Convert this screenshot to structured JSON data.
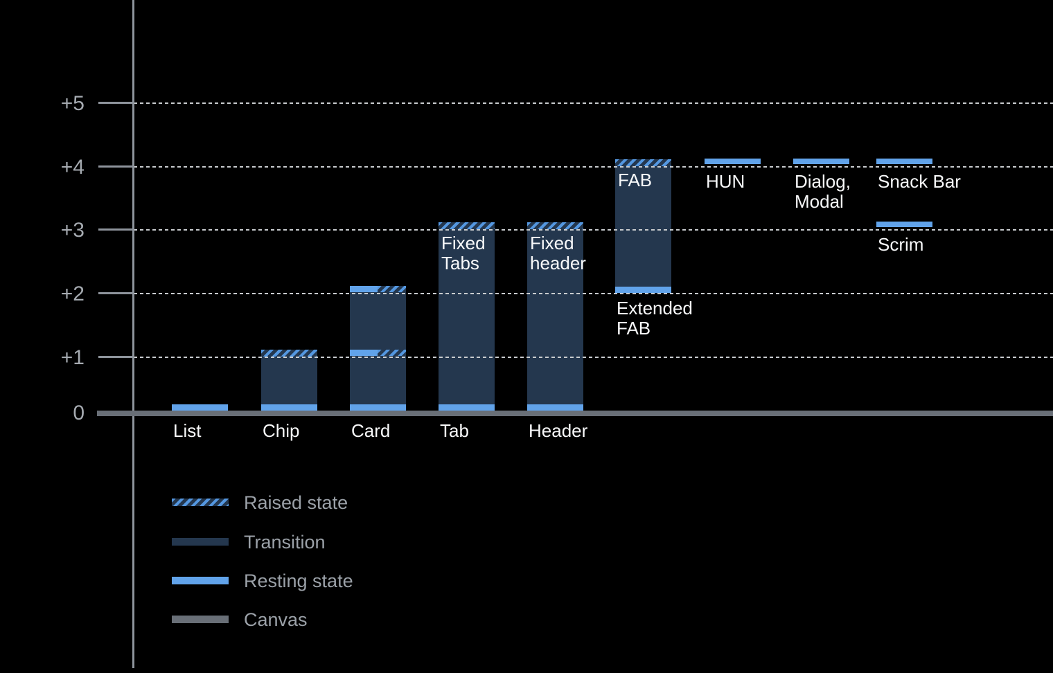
{
  "colors": {
    "background": "#000000",
    "resting": "#61A3EA",
    "transition": "#24374E",
    "hatch_stripe": "#5497E0",
    "canvas": "#696F77",
    "axis": "#8E949C",
    "gridline": "#C9CCCF",
    "y_label": "#A5AAB0",
    "legend_label": "#9BA1A8",
    "component_label": "#F8F9FA"
  },
  "chart_data": {
    "type": "bar",
    "title": "",
    "xlabel": "",
    "ylabel": "",
    "y_axis": {
      "tick_labels": [
        "+5",
        "+4",
        "+3",
        "+2",
        "+1",
        "0"
      ],
      "tick_values": [
        5,
        4,
        3,
        2,
        1,
        0
      ],
      "range": [
        0,
        5
      ],
      "gridlines": "dotted horizontal lines at +1 through +5",
      "baseline": "canvas bar at 0"
    },
    "components": [
      {
        "id": "list",
        "label": "List",
        "label_pos": "axis",
        "column": 0,
        "bands": [
          {
            "level": 0,
            "type": "resting"
          }
        ]
      },
      {
        "id": "chip",
        "label": "Chip",
        "label_pos": "axis",
        "column": 1,
        "transition": {
          "from": 0,
          "to": 1
        },
        "bands": [
          {
            "level": 0,
            "type": "resting"
          },
          {
            "level": 1,
            "type": "raised"
          }
        ]
      },
      {
        "id": "card",
        "label": "Card",
        "label_pos": "axis",
        "column": 2,
        "transition": {
          "from": 0,
          "to": 2
        },
        "bands": [
          {
            "level": 0,
            "type": "resting"
          },
          {
            "level": 1,
            "type": "resting-raised"
          },
          {
            "level": 2,
            "type": "resting-raised"
          }
        ]
      },
      {
        "id": "tab",
        "label": "Tab",
        "label_pos": "axis",
        "column": 3,
        "transition": {
          "from": 0,
          "to": 3
        },
        "inner_label": "Fixed\nTabs",
        "bands": [
          {
            "level": 0,
            "type": "resting"
          },
          {
            "level": 3,
            "type": "raised"
          }
        ]
      },
      {
        "id": "header",
        "label": "Header",
        "label_pos": "axis",
        "column": 4,
        "transition": {
          "from": 0,
          "to": 3
        },
        "inner_label": "Fixed\nheader",
        "bands": [
          {
            "level": 0,
            "type": "resting"
          },
          {
            "level": 3,
            "type": "raised"
          }
        ]
      },
      {
        "id": "extended-fab",
        "label": "Extended\nFAB",
        "label_pos": "level",
        "label_level": 2,
        "column": 5,
        "transition": {
          "from": 2,
          "to": 4
        },
        "inner_label": "FAB",
        "bands": [
          {
            "level": 2,
            "type": "resting"
          },
          {
            "level": 4,
            "type": "raised"
          }
        ]
      },
      {
        "id": "hun",
        "label": "HUN",
        "label_pos": "level",
        "label_level": 4,
        "column": 6,
        "bands": [
          {
            "level": 4,
            "type": "floating"
          }
        ]
      },
      {
        "id": "dialog-modal",
        "label": "Dialog,\nModal",
        "label_pos": "level",
        "label_level": 4,
        "column": 7,
        "bands": [
          {
            "level": 4,
            "type": "floating"
          }
        ]
      },
      {
        "id": "snack-bar",
        "label": "Snack Bar",
        "label_pos": "level",
        "label_level": 4,
        "column": 8,
        "bands": [
          {
            "level": 4,
            "type": "floating"
          }
        ]
      },
      {
        "id": "scrim",
        "label": "Scrim",
        "label_pos": "level",
        "label_level": 3,
        "column": 8,
        "bands": [
          {
            "level": 3,
            "type": "floating"
          }
        ]
      }
    ],
    "legend": [
      {
        "id": "raised",
        "label": "Raised state",
        "swatch": "hatch"
      },
      {
        "id": "transition",
        "label": "Transition",
        "swatch": "transition"
      },
      {
        "id": "resting",
        "label": "Resting state",
        "swatch": "resting"
      },
      {
        "id": "canvas",
        "label": "Canvas",
        "swatch": "canvas"
      }
    ]
  }
}
